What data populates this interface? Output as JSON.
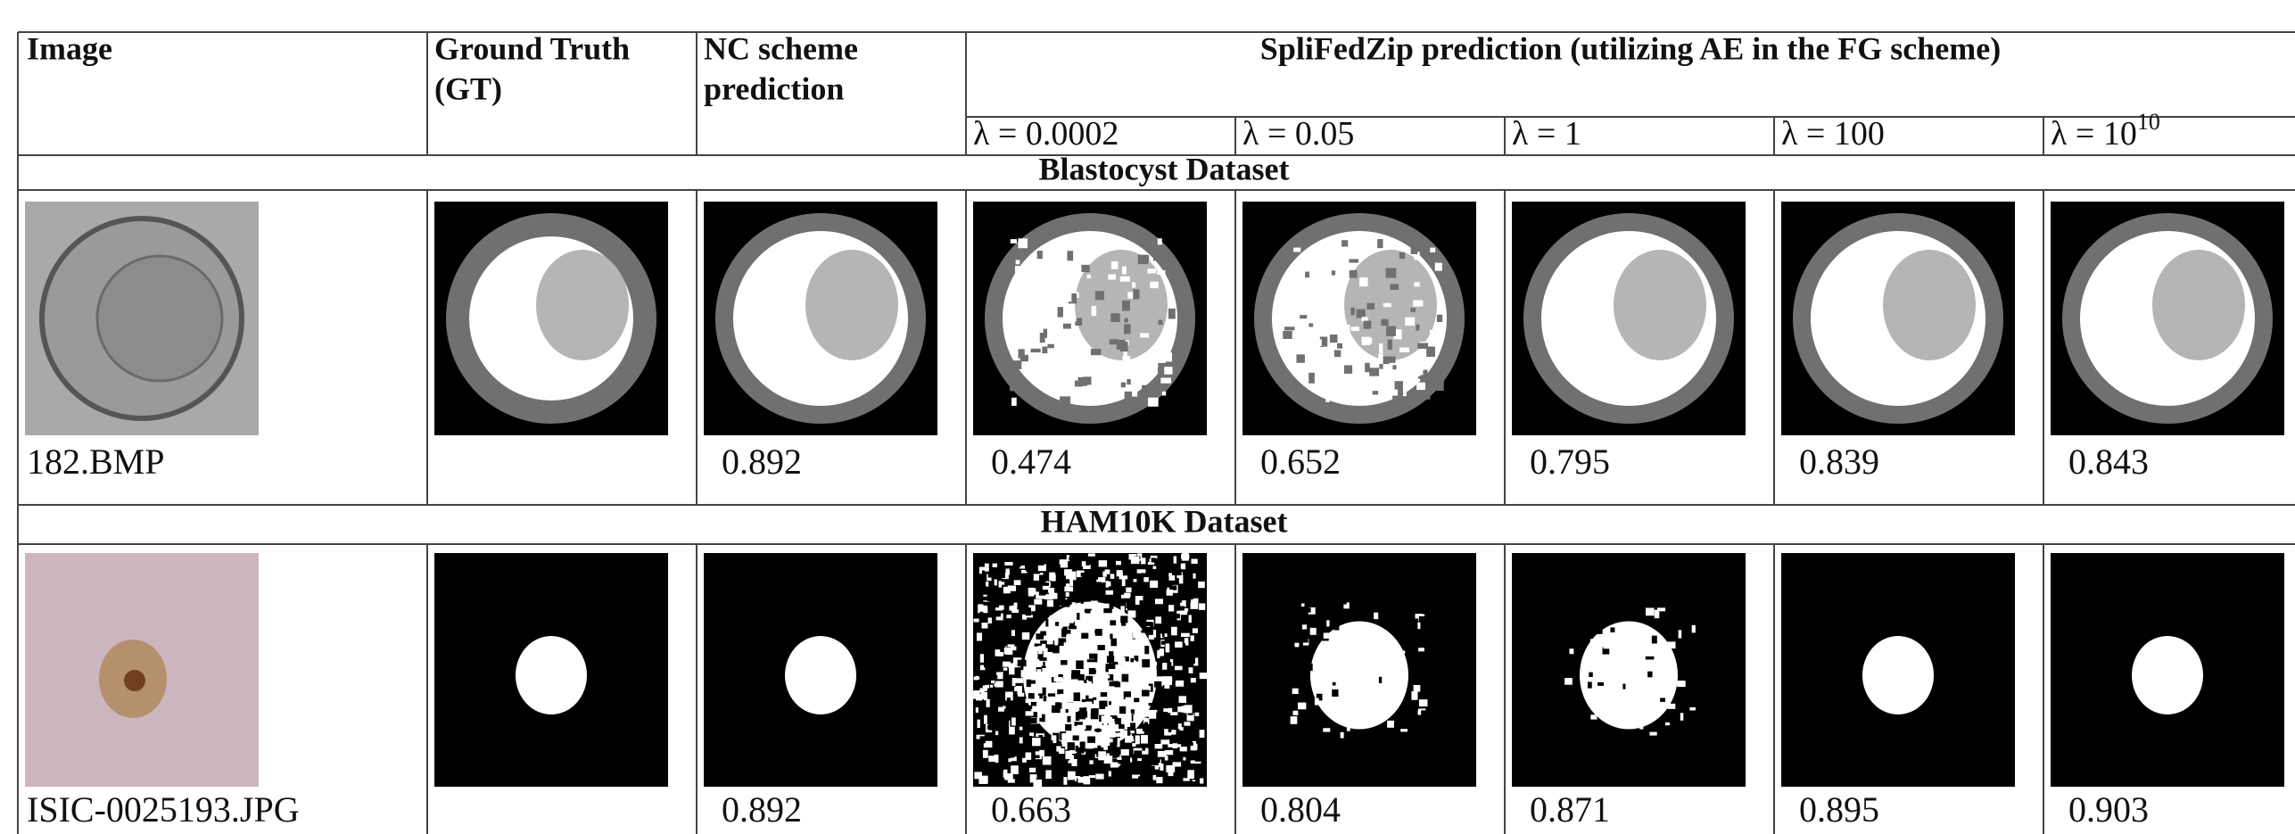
{
  "header": {
    "image": "Image",
    "ground_truth": [
      "Ground Truth",
      "(GT)"
    ],
    "nc": [
      "NC scheme",
      "prediction"
    ],
    "splifedzip": "SpliFedZip prediction (utilizing AE in the FG scheme)",
    "lambdas": [
      {
        "text": "λ = 0.0002"
      },
      {
        "text": "λ = 0.05"
      },
      {
        "text": "λ = 1"
      },
      {
        "text": "λ = 100"
      },
      {
        "text": "λ = 10",
        "sup": "10"
      }
    ]
  },
  "sections": [
    {
      "title": "Blastocyst Dataset",
      "image_name": "182.BMP",
      "nc_score": "0.892",
      "scores": [
        "0.474",
        "0.652",
        "0.795",
        "0.839",
        "0.843"
      ]
    },
    {
      "title": "HAM10K Dataset",
      "image_name": "ISIC-0025193.JPG",
      "nc_score": "0.892",
      "scores": [
        "0.663",
        "0.804",
        "0.871",
        "0.895",
        "0.903"
      ]
    }
  ]
}
